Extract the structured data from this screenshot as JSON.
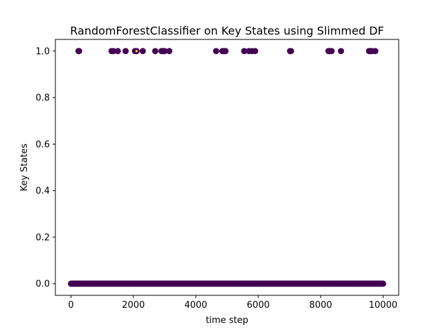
{
  "chart_data": {
    "type": "scatter",
    "title": "RandomForestClassifier on Key States using Slimmed DF",
    "xlabel": "time step",
    "ylabel": "Key States",
    "xlim": [
      -500,
      10500
    ],
    "ylim": [
      -0.05,
      1.05
    ],
    "xticks": [
      0,
      2000,
      4000,
      6000,
      8000,
      10000
    ],
    "xtick_labels": [
      "0",
      "2000",
      "4000",
      "6000",
      "8000",
      "10000"
    ],
    "yticks": [
      0.0,
      0.2,
      0.4,
      0.6,
      0.8,
      1.0
    ],
    "ytick_labels": [
      "0.0",
      "0.2",
      "0.4",
      "0.6",
      "0.8",
      "1.0"
    ],
    "grid": false,
    "marker_color": "#440154",
    "accent_color": "#fde725",
    "series": [
      {
        "low_band": {
          "y": 0,
          "x_start": 0,
          "x_end": 10000
        },
        "high_points": {
          "y": 1,
          "x": [
            240,
            260,
            1300,
            1360,
            1500,
            1750,
            2050,
            2100,
            2300,
            2700,
            2900,
            2950,
            3000,
            3150,
            4650,
            4850,
            4900,
            4950,
            5550,
            5700,
            5800,
            5900,
            7020,
            7050,
            8250,
            8300,
            8350,
            8650,
            9550,
            9600,
            9650,
            9750
          ]
        },
        "accent_points": {
          "y": 1,
          "x": [
            2100
          ]
        }
      }
    ]
  }
}
